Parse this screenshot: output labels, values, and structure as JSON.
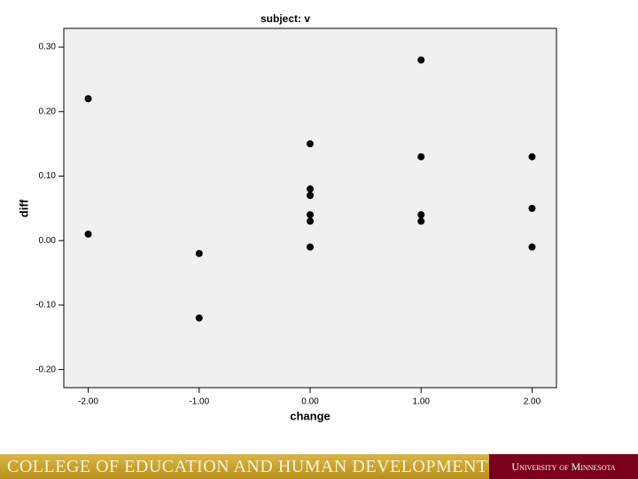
{
  "chart_data": {
    "type": "scatter",
    "title": "subject: v",
    "x_label": "change",
    "y_label": "diff",
    "x": [
      -2,
      -2,
      -1,
      -1,
      0,
      0,
      0,
      0,
      0,
      0,
      1,
      1,
      1,
      1,
      2,
      2,
      2
    ],
    "values": [
      0.22,
      0.01,
      -0.02,
      -0.12,
      0.15,
      0.08,
      0.07,
      0.04,
      0.03,
      -0.01,
      0.28,
      0.13,
      0.04,
      0.03,
      0.13,
      0.05,
      -0.01
    ],
    "color": "#000000",
    "xlim": [
      -2.22,
      2.22
    ],
    "ylim": [
      -0.228,
      0.329
    ],
    "xticks": [
      {
        "value": -2,
        "label": "-2.00"
      },
      {
        "value": -1,
        "label": "-1.00"
      },
      {
        "value": 0,
        "label": "0.00"
      },
      {
        "value": 1,
        "label": "1.00"
      },
      {
        "value": 2,
        "label": "2.00"
      }
    ],
    "yticks": [
      {
        "value": -0.2,
        "label": "-0.20"
      },
      {
        "value": -0.1,
        "label": "-0.10"
      },
      {
        "value": 0,
        "label": "0.00"
      },
      {
        "value": 0.1,
        "label": "0.10"
      },
      {
        "value": 0.2,
        "label": "0.20"
      },
      {
        "value": 0.3,
        "label": "0.30"
      }
    ]
  },
  "footer": {
    "left": "COLLEGE OF EDUCATION AND HUMAN DEVELOPMENT",
    "right": "University of Minnesota"
  }
}
